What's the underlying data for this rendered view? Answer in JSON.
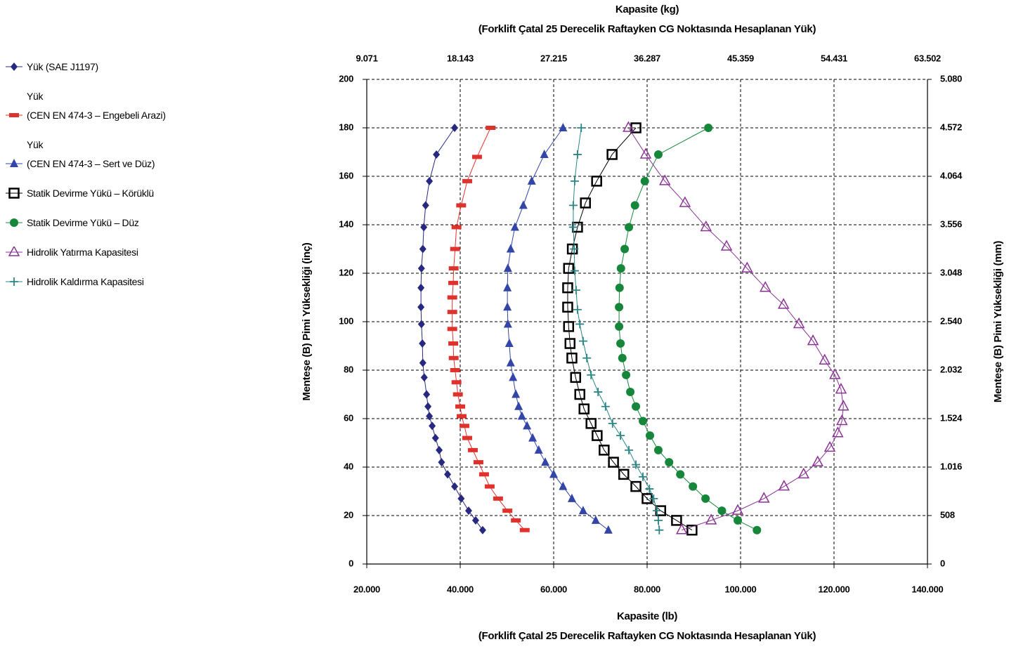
{
  "chart_data": {
    "type": "scatter",
    "xlabel": [
      "Kapasite (lb)",
      "(Forklift Çatal 25 Derecelik Raftayken CG Noktasında Hesaplanan Yük)"
    ],
    "x2label": [
      "Kapasite (kg)",
      "(Forklift Çatal 25 Derecelik Raftayken CG Noktasında Hesaplanan Yük)"
    ],
    "ylabel": "Menteşe (B) Pimi Yüksekliği (inç)",
    "y2label": "Menteşe (B) Pimi Yüksekliği (mm)",
    "xlim": [
      20000,
      140000
    ],
    "xticks": [
      {
        "value": 20000,
        "label": "20.000"
      },
      {
        "value": 40000,
        "label": "40.000"
      },
      {
        "value": 60000,
        "label": "60.000"
      },
      {
        "value": 80000,
        "label": "80.000"
      },
      {
        "value": 100000,
        "label": "100.000"
      },
      {
        "value": 120000,
        "label": "120.000"
      },
      {
        "value": 140000,
        "label": "140.000"
      }
    ],
    "x2lim": [
      9071,
      63502
    ],
    "x2ticks": [
      {
        "value": 9071,
        "label": "9.071"
      },
      {
        "value": 18143,
        "label": "18.143"
      },
      {
        "value": 27215,
        "label": "27.215"
      },
      {
        "value": 36287,
        "label": "36.287"
      },
      {
        "value": 45359,
        "label": "45.359"
      },
      {
        "value": 54431,
        "label": "54.431"
      },
      {
        "value": 63502,
        "label": "63.502"
      }
    ],
    "ylim": [
      0,
      200
    ],
    "yticks": [
      0,
      20,
      40,
      60,
      80,
      100,
      120,
      140,
      160,
      180,
      200
    ],
    "y2lim": [
      0,
      5080
    ],
    "y2ticks": [
      0,
      508,
      {
        "value": 1016,
        "label": "1.016"
      },
      {
        "value": 1524,
        "label": "1.524"
      },
      {
        "value": 2032,
        "label": "2.032"
      },
      {
        "value": 2540,
        "label": "2.540"
      },
      {
        "value": 3048,
        "label": "3.048"
      },
      {
        "value": 3556,
        "label": "3.556"
      },
      {
        "value": 4064,
        "label": "4.064"
      },
      {
        "value": 4572,
        "label": "4.572"
      },
      {
        "value": 5080,
        "label": "5.080"
      }
    ],
    "grid": true,
    "legend": "left",
    "series": [
      {
        "name": "Yük (SAE J1197)",
        "color": "#27287f",
        "marker": "diamond",
        "x": [
          44800,
          43300,
          41800,
          40200,
          38800,
          37300,
          36000,
          35500,
          34700,
          34000,
          33400,
          33100,
          32800,
          32300,
          32000,
          31900,
          31700,
          31600,
          31600,
          31700,
          32000,
          32200,
          32600,
          33400,
          34900,
          38800
        ],
        "y": [
          14,
          18,
          22,
          27,
          32,
          37,
          42,
          47,
          52,
          57,
          61,
          65,
          70,
          77,
          83,
          91,
          99,
          106,
          114,
          122,
          130,
          139,
          148,
          158,
          169,
          180
        ]
      },
      {
        "name": "Yük\n(CEN EN 474-3 – Engebeli Arazi)",
        "color": "#e0322d",
        "marker": "dash",
        "x": [
          53800,
          51900,
          50100,
          48100,
          46300,
          45100,
          43900,
          42700,
          41500,
          40900,
          40300,
          40000,
          39500,
          39200,
          38900,
          38600,
          38500,
          38300,
          38300,
          38300,
          38500,
          38600,
          38900,
          39200,
          40200,
          41500,
          43600,
          46500
        ],
        "y": [
          14,
          18,
          22,
          27,
          32,
          37,
          42,
          47,
          52,
          57,
          61,
          65,
          70,
          75,
          80,
          85,
          91,
          97,
          104,
          110,
          116,
          122,
          130,
          139,
          148,
          158,
          168,
          180
        ]
      },
      {
        "name": "Yük\n(CEN EN 474-3 – Sert ve Düz)",
        "color": "#3346a8",
        "marker": "triangle",
        "x": [
          71700,
          69000,
          66300,
          63900,
          62000,
          60000,
          58200,
          56800,
          55500,
          54300,
          53200,
          52500,
          51900,
          51300,
          50800,
          50500,
          50200,
          50100,
          50100,
          50200,
          50800,
          51700,
          53500,
          55300,
          58000,
          62000
        ],
        "y": [
          14,
          18,
          22,
          27,
          32,
          37,
          42,
          47,
          52,
          57,
          61,
          65,
          70,
          77,
          83,
          91,
          99,
          106,
          114,
          122,
          130,
          139,
          148,
          158,
          169,
          180
        ]
      },
      {
        "name": "Statik Devirme Yükü – Körüklü",
        "color": "#000000",
        "marker": "square",
        "x": [
          89600,
          86300,
          82900,
          80000,
          77600,
          75000,
          72800,
          70800,
          69300,
          68000,
          66500,
          65600,
          64700,
          63900,
          63500,
          63200,
          63000,
          63000,
          63200,
          64000,
          65100,
          66800,
          69200,
          72500,
          77600
        ],
        "y": [
          14,
          18,
          22,
          27,
          32,
          37,
          42,
          47,
          53,
          58,
          64,
          70,
          77,
          85,
          91,
          98,
          106,
          114,
          122,
          130,
          139,
          149,
          158,
          169,
          180
        ]
      },
      {
        "name": "Statik Devirme Yükü – Düz",
        "color": "#16873a",
        "marker": "circle",
        "x": [
          103500,
          99400,
          96000,
          92500,
          89800,
          87100,
          84700,
          82400,
          80600,
          79100,
          77600,
          76400,
          75500,
          74700,
          74300,
          74000,
          74000,
          74100,
          74400,
          75200,
          76100,
          77400,
          79500,
          82400,
          93100
        ],
        "y": [
          14,
          18,
          22,
          27,
          32,
          37,
          42,
          47,
          53,
          59,
          65,
          71,
          78,
          85,
          91,
          98,
          106,
          114,
          122,
          130,
          139,
          148,
          158,
          169,
          180
        ]
      },
      {
        "name": "Hidrolik Yatırma Kapasitesi",
        "color": "#8a3394",
        "marker": "open-triangle",
        "x": [
          87400,
          93700,
          99400,
          105000,
          109300,
          113500,
          116500,
          119100,
          120800,
          121700,
          122000,
          121500,
          120200,
          118000,
          115500,
          112500,
          109200,
          105300,
          101400,
          97000,
          92600,
          88100,
          83800,
          79700,
          76000
        ],
        "y": [
          14,
          18,
          22,
          27,
          32,
          37,
          42,
          48,
          54,
          59,
          65,
          72,
          78,
          84,
          92,
          99,
          107,
          114,
          122,
          131,
          139,
          149,
          158,
          169,
          180
        ]
      },
      {
        "name": "Hidrolik Kaldırma Kapasitesi",
        "color": "#2a8585",
        "marker": "plus",
        "x": [
          82600,
          82400,
          82100,
          81400,
          80500,
          79100,
          77600,
          76100,
          74300,
          72600,
          71100,
          69500,
          68000,
          67100,
          66300,
          65600,
          65100,
          64800,
          64500,
          64400,
          64200,
          64200,
          64500,
          65100,
          65900
        ],
        "y": [
          14,
          18,
          22,
          27,
          31,
          36,
          41,
          47,
          53,
          58,
          65,
          71,
          78,
          85,
          92,
          99,
          105,
          113,
          121,
          130,
          139,
          148,
          158,
          169,
          180
        ]
      }
    ]
  }
}
